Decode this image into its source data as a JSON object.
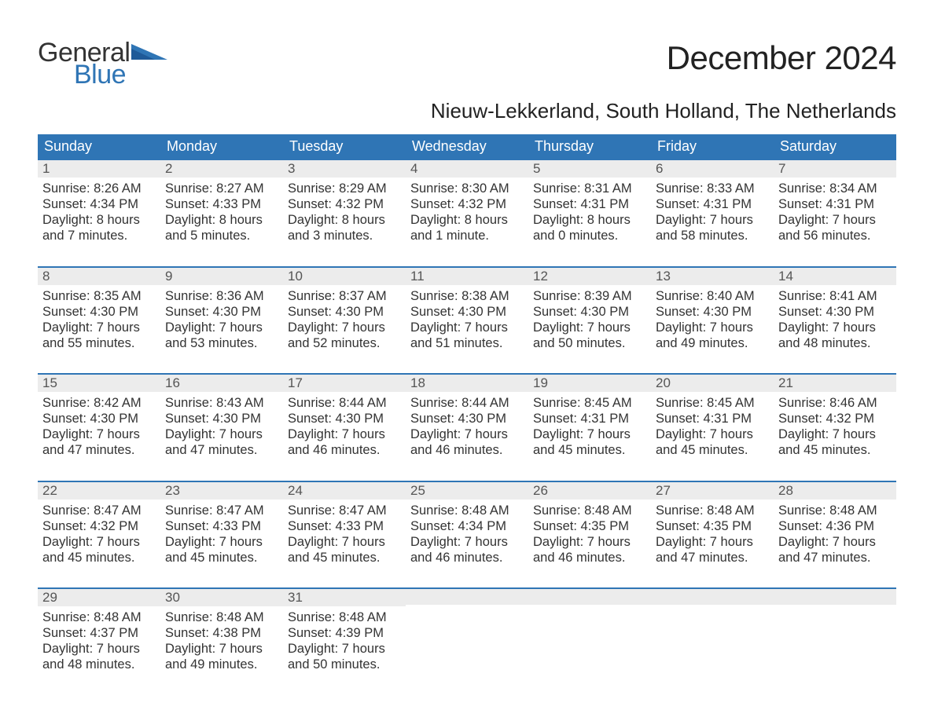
{
  "logo": {
    "general": "General",
    "blue": "Blue"
  },
  "title": "December 2024",
  "location": "Nieuw-Lekkerland, South Holland, The Netherlands",
  "colors": {
    "header_bg": "#2f75b5",
    "header_text": "#ffffff",
    "week_border": "#2f75b5",
    "daynum_bg": "#ececec",
    "daynum_text": "#555555",
    "body_text": "#333333",
    "logo_blue": "#2f75b5",
    "logo_dark": "#333333",
    "page_bg": "#ffffff"
  },
  "weekdays": [
    "Sunday",
    "Monday",
    "Tuesday",
    "Wednesday",
    "Thursday",
    "Friday",
    "Saturday"
  ],
  "weeks": [
    [
      {
        "n": "1",
        "sunrise": "Sunrise: 8:26 AM",
        "sunset": "Sunset: 4:34 PM",
        "daylight1": "Daylight: 8 hours",
        "daylight2": "and 7 minutes."
      },
      {
        "n": "2",
        "sunrise": "Sunrise: 8:27 AM",
        "sunset": "Sunset: 4:33 PM",
        "daylight1": "Daylight: 8 hours",
        "daylight2": "and 5 minutes."
      },
      {
        "n": "3",
        "sunrise": "Sunrise: 8:29 AM",
        "sunset": "Sunset: 4:32 PM",
        "daylight1": "Daylight: 8 hours",
        "daylight2": "and 3 minutes."
      },
      {
        "n": "4",
        "sunrise": "Sunrise: 8:30 AM",
        "sunset": "Sunset: 4:32 PM",
        "daylight1": "Daylight: 8 hours",
        "daylight2": "and 1 minute."
      },
      {
        "n": "5",
        "sunrise": "Sunrise: 8:31 AM",
        "sunset": "Sunset: 4:31 PM",
        "daylight1": "Daylight: 8 hours",
        "daylight2": "and 0 minutes."
      },
      {
        "n": "6",
        "sunrise": "Sunrise: 8:33 AM",
        "sunset": "Sunset: 4:31 PM",
        "daylight1": "Daylight: 7 hours",
        "daylight2": "and 58 minutes."
      },
      {
        "n": "7",
        "sunrise": "Sunrise: 8:34 AM",
        "sunset": "Sunset: 4:31 PM",
        "daylight1": "Daylight: 7 hours",
        "daylight2": "and 56 minutes."
      }
    ],
    [
      {
        "n": "8",
        "sunrise": "Sunrise: 8:35 AM",
        "sunset": "Sunset: 4:30 PM",
        "daylight1": "Daylight: 7 hours",
        "daylight2": "and 55 minutes."
      },
      {
        "n": "9",
        "sunrise": "Sunrise: 8:36 AM",
        "sunset": "Sunset: 4:30 PM",
        "daylight1": "Daylight: 7 hours",
        "daylight2": "and 53 minutes."
      },
      {
        "n": "10",
        "sunrise": "Sunrise: 8:37 AM",
        "sunset": "Sunset: 4:30 PM",
        "daylight1": "Daylight: 7 hours",
        "daylight2": "and 52 minutes."
      },
      {
        "n": "11",
        "sunrise": "Sunrise: 8:38 AM",
        "sunset": "Sunset: 4:30 PM",
        "daylight1": "Daylight: 7 hours",
        "daylight2": "and 51 minutes."
      },
      {
        "n": "12",
        "sunrise": "Sunrise: 8:39 AM",
        "sunset": "Sunset: 4:30 PM",
        "daylight1": "Daylight: 7 hours",
        "daylight2": "and 50 minutes."
      },
      {
        "n": "13",
        "sunrise": "Sunrise: 8:40 AM",
        "sunset": "Sunset: 4:30 PM",
        "daylight1": "Daylight: 7 hours",
        "daylight2": "and 49 minutes."
      },
      {
        "n": "14",
        "sunrise": "Sunrise: 8:41 AM",
        "sunset": "Sunset: 4:30 PM",
        "daylight1": "Daylight: 7 hours",
        "daylight2": "and 48 minutes."
      }
    ],
    [
      {
        "n": "15",
        "sunrise": "Sunrise: 8:42 AM",
        "sunset": "Sunset: 4:30 PM",
        "daylight1": "Daylight: 7 hours",
        "daylight2": "and 47 minutes."
      },
      {
        "n": "16",
        "sunrise": "Sunrise: 8:43 AM",
        "sunset": "Sunset: 4:30 PM",
        "daylight1": "Daylight: 7 hours",
        "daylight2": "and 47 minutes."
      },
      {
        "n": "17",
        "sunrise": "Sunrise: 8:44 AM",
        "sunset": "Sunset: 4:30 PM",
        "daylight1": "Daylight: 7 hours",
        "daylight2": "and 46 minutes."
      },
      {
        "n": "18",
        "sunrise": "Sunrise: 8:44 AM",
        "sunset": "Sunset: 4:30 PM",
        "daylight1": "Daylight: 7 hours",
        "daylight2": "and 46 minutes."
      },
      {
        "n": "19",
        "sunrise": "Sunrise: 8:45 AM",
        "sunset": "Sunset: 4:31 PM",
        "daylight1": "Daylight: 7 hours",
        "daylight2": "and 45 minutes."
      },
      {
        "n": "20",
        "sunrise": "Sunrise: 8:45 AM",
        "sunset": "Sunset: 4:31 PM",
        "daylight1": "Daylight: 7 hours",
        "daylight2": "and 45 minutes."
      },
      {
        "n": "21",
        "sunrise": "Sunrise: 8:46 AM",
        "sunset": "Sunset: 4:32 PM",
        "daylight1": "Daylight: 7 hours",
        "daylight2": "and 45 minutes."
      }
    ],
    [
      {
        "n": "22",
        "sunrise": "Sunrise: 8:47 AM",
        "sunset": "Sunset: 4:32 PM",
        "daylight1": "Daylight: 7 hours",
        "daylight2": "and 45 minutes."
      },
      {
        "n": "23",
        "sunrise": "Sunrise: 8:47 AM",
        "sunset": "Sunset: 4:33 PM",
        "daylight1": "Daylight: 7 hours",
        "daylight2": "and 45 minutes."
      },
      {
        "n": "24",
        "sunrise": "Sunrise: 8:47 AM",
        "sunset": "Sunset: 4:33 PM",
        "daylight1": "Daylight: 7 hours",
        "daylight2": "and 45 minutes."
      },
      {
        "n": "25",
        "sunrise": "Sunrise: 8:48 AM",
        "sunset": "Sunset: 4:34 PM",
        "daylight1": "Daylight: 7 hours",
        "daylight2": "and 46 minutes."
      },
      {
        "n": "26",
        "sunrise": "Sunrise: 8:48 AM",
        "sunset": "Sunset: 4:35 PM",
        "daylight1": "Daylight: 7 hours",
        "daylight2": "and 46 minutes."
      },
      {
        "n": "27",
        "sunrise": "Sunrise: 8:48 AM",
        "sunset": "Sunset: 4:35 PM",
        "daylight1": "Daylight: 7 hours",
        "daylight2": "and 47 minutes."
      },
      {
        "n": "28",
        "sunrise": "Sunrise: 8:48 AM",
        "sunset": "Sunset: 4:36 PM",
        "daylight1": "Daylight: 7 hours",
        "daylight2": "and 47 minutes."
      }
    ],
    [
      {
        "n": "29",
        "sunrise": "Sunrise: 8:48 AM",
        "sunset": "Sunset: 4:37 PM",
        "daylight1": "Daylight: 7 hours",
        "daylight2": "and 48 minutes."
      },
      {
        "n": "30",
        "sunrise": "Sunrise: 8:48 AM",
        "sunset": "Sunset: 4:38 PM",
        "daylight1": "Daylight: 7 hours",
        "daylight2": "and 49 minutes."
      },
      {
        "n": "31",
        "sunrise": "Sunrise: 8:48 AM",
        "sunset": "Sunset: 4:39 PM",
        "daylight1": "Daylight: 7 hours",
        "daylight2": "and 50 minutes."
      },
      null,
      null,
      null,
      null
    ]
  ]
}
